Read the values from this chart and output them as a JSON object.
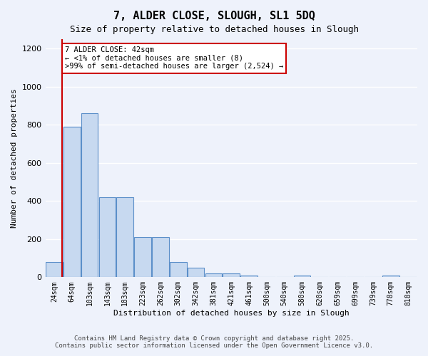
{
  "title_line1": "7, ALDER CLOSE, SLOUGH, SL1 5DQ",
  "title_line2": "Size of property relative to detached houses in Slough",
  "xlabel": "Distribution of detached houses by size in Slough",
  "ylabel": "Number of detached properties",
  "bar_labels": [
    "24sqm",
    "64sqm",
    "103sqm",
    "143sqm",
    "183sqm",
    "223sqm",
    "262sqm",
    "302sqm",
    "342sqm",
    "381sqm",
    "421sqm",
    "461sqm",
    "500sqm",
    "540sqm",
    "580sqm",
    "620sqm",
    "659sqm",
    "699sqm",
    "739sqm",
    "778sqm",
    "818sqm"
  ],
  "bar_values": [
    80,
    790,
    860,
    420,
    420,
    210,
    210,
    80,
    50,
    20,
    20,
    10,
    0,
    0,
    10,
    0,
    0,
    0,
    0,
    10,
    0
  ],
  "bar_color": "#c7d9f0",
  "bar_edge_color": "#5b8fc9",
  "background_color": "#eef2fb",
  "grid_color": "#ffffff",
  "red_line_x": 0.35,
  "annotation_text": "7 ALDER CLOSE: 42sqm\n← <1% of detached houses are smaller (8)\n>99% of semi-detached houses are larger (2,524) →",
  "annotation_box_color": "#ffffff",
  "annotation_text_color": "#000000",
  "red_line_color": "#cc0000",
  "ylim": [
    0,
    1250
  ],
  "yticks": [
    0,
    200,
    400,
    600,
    800,
    1000,
    1200
  ],
  "footer_line1": "Contains HM Land Registry data © Crown copyright and database right 2025.",
  "footer_line2": "Contains public sector information licensed under the Open Government Licence v3.0."
}
